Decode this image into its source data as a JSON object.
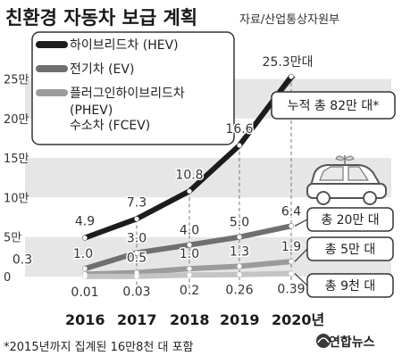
{
  "header": {
    "title": "친환경 자동차 보급 계획",
    "source": "자료/산업통상자원부"
  },
  "footnote": "*2015년까지 집계된 16만8천 대 포함",
  "credit": "연합뉴스",
  "colors": {
    "background": "#ffffff",
    "band": "#e6e6e6",
    "hev": "#1c1c1c",
    "ev": "#6f6f6f",
    "phev": "#9b9b9b",
    "fcev": "#c4c4c4"
  },
  "chart_data": {
    "type": "line",
    "categories": [
      "2016",
      "2017",
      "2018",
      "2019",
      "2020년"
    ],
    "y_ticks": [
      "0",
      "5만",
      "10만",
      "15만",
      "20만",
      "25만"
    ],
    "ylim": [
      0,
      25
    ],
    "grid": "alternating horizontal bands",
    "legend_placement": "top-left",
    "series": [
      {
        "name": "하이브리드차 (HEV)",
        "values": [
          4.9,
          7.3,
          10.8,
          16.6,
          25.3
        ],
        "labels": [
          "4.9",
          "7.3",
          "10.8",
          "16.6",
          "25.3만대"
        ]
      },
      {
        "name": "전기차 (EV)",
        "values": [
          1.0,
          3.0,
          4.0,
          5.0,
          6.4
        ],
        "labels": [
          "1.0",
          "3.0",
          "4.0",
          "5.0",
          "6.4"
        ]
      },
      {
        "name": "플러그인하이브리드차 (PHEV)",
        "values": [
          0.3,
          0.5,
          1.0,
          1.3,
          1.9
        ],
        "labels": [
          "0.3",
          "0.5",
          "1.0",
          "1.3",
          "1.9"
        ]
      },
      {
        "name": "수소차 (FCEV)",
        "values": [
          0.01,
          0.03,
          0.2,
          0.26,
          0.39
        ],
        "labels": [
          "0.01",
          "0.03",
          "0.2",
          "0.26",
          "0.39"
        ]
      }
    ],
    "annotations": [
      {
        "text": "누적 총 82만 대*",
        "series": "하이브리드차 (HEV)"
      },
      {
        "text": "총 20만 대",
        "series": "전기차 (EV)"
      },
      {
        "text": "총 5만 대",
        "series": "플러그인하이브리드차 (PHEV)"
      },
      {
        "text": "총 9천 대",
        "series": "수소차 (FCEV)"
      }
    ]
  }
}
